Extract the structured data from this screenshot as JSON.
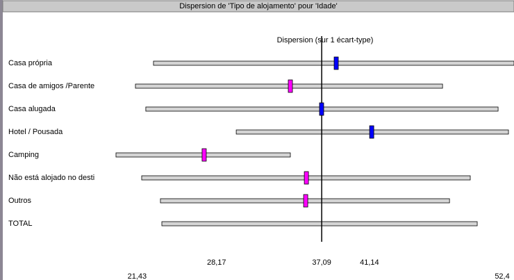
{
  "chart_data": {
    "type": "dispersion",
    "title": "Dispersion de 'Tipo de alojamento' pour 'Idade'",
    "subtitle": "Dispersion (sur 1 écart-type)",
    "categories": [
      "Casa própria",
      "Casa de amigos /Parente",
      "Casa alugada",
      "Hotel / Pousada",
      "Camping",
      "Não está alojado no desti",
      "Outros",
      "TOTAL"
    ],
    "low": [
      22.82,
      21.29,
      22.17,
      29.84,
      19.64,
      21.82,
      23.41,
      23.53
    ],
    "high": [
      53.4,
      47.34,
      52.05,
      52.93,
      34.43,
      49.69,
      47.93,
      50.28
    ],
    "means": [
      38.32,
      34.43,
      37.08,
      41.33,
      27.12,
      35.79,
      35.73,
      null
    ],
    "marker_colors": [
      "#0000ff",
      "#ff00ff",
      "#0000ff",
      "#0000ff",
      "#ff00ff",
      "#ff00ff",
      "#ff00ff",
      null
    ],
    "bar_color": "#d4d4d4",
    "reference": 37.09,
    "xlim": [
      19.7,
      53.4
    ],
    "xticks": [
      {
        "value": 21.43,
        "label": "21,43"
      },
      {
        "value": 28.17,
        "label": "28,17"
      },
      {
        "value": 37.09,
        "label": "37,09"
      },
      {
        "value": 41.14,
        "label": "41,14"
      },
      {
        "value": 52.4,
        "label": "52,4"
      }
    ]
  }
}
